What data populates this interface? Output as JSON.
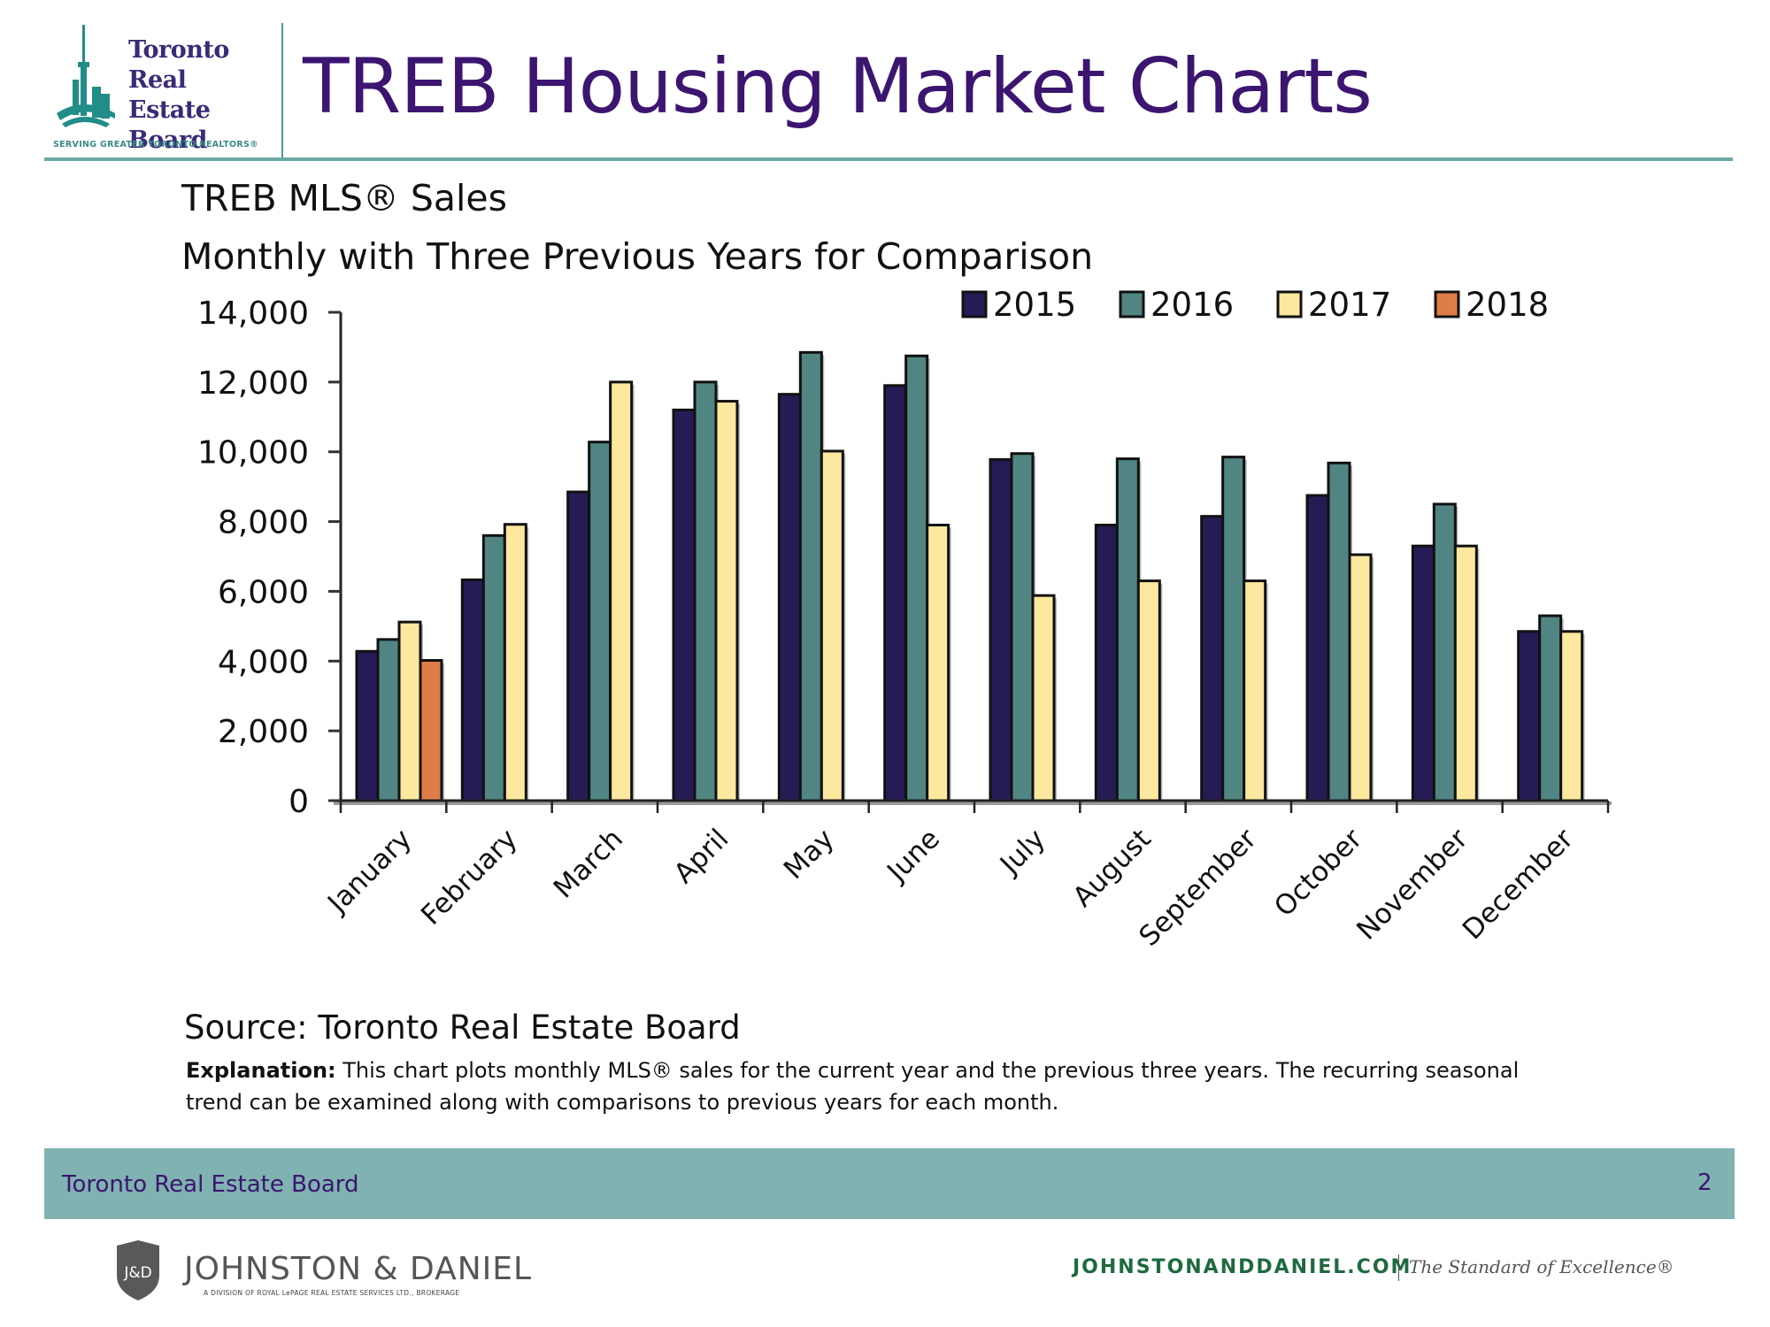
{
  "header": {
    "logo": {
      "lines": [
        "Toronto",
        "Real Estate",
        "Board"
      ],
      "tagline": "SERVING GREATER TORONTO REALTORS®",
      "icon": "cn-tower-skyline-icon"
    },
    "title": "TREB Housing Market Charts"
  },
  "chart_title": "TREB MLS® Sales",
  "chart_subtitle": "Monthly with Three Previous Years for Comparison",
  "chart_data": {
    "type": "bar",
    "title": "TREB MLS® Sales",
    "subtitle": "Monthly with Three Previous Years for Comparison",
    "xlabel": "",
    "ylabel": "",
    "categories": [
      "January",
      "February",
      "March",
      "April",
      "May",
      "June",
      "July",
      "August",
      "September",
      "October",
      "November",
      "December"
    ],
    "ylim": [
      0,
      14000
    ],
    "yticks": [
      0,
      2000,
      4000,
      6000,
      8000,
      10000,
      12000,
      14000
    ],
    "ytick_labels": [
      "0",
      "2,000",
      "4,000",
      "6,000",
      "8,000",
      "10,000",
      "12,000",
      "14,000"
    ],
    "grid": false,
    "legend_position": "top-right",
    "series": [
      {
        "name": "2015",
        "color": "#261b55",
        "values": [
          4280,
          6330,
          8850,
          11200,
          11650,
          11900,
          9780,
          7900,
          8150,
          8750,
          7300,
          4850
        ]
      },
      {
        "name": "2016",
        "color": "#508583",
        "values": [
          4620,
          7600,
          10280,
          12000,
          12850,
          12750,
          9950,
          9800,
          9850,
          9680,
          8500,
          5300
        ]
      },
      {
        "name": "2017",
        "color": "#fce89e",
        "values": [
          5120,
          7920,
          12000,
          11450,
          10020,
          7900,
          5880,
          6300,
          6300,
          7050,
          7300,
          4850
        ]
      },
      {
        "name": "2018",
        "color": "#de7d48",
        "values": [
          4020,
          null,
          null,
          null,
          null,
          null,
          null,
          null,
          null,
          null,
          null,
          null
        ]
      }
    ]
  },
  "source": "Source: Toronto Real Estate Board",
  "explanation": {
    "label": "Explanation:",
    "text": " This chart plots monthly MLS® sales for the current year and the previous three years. The recurring seasonal trend can be examined along with comparisons to previous years for each month."
  },
  "footer": {
    "left": "Toronto Real Estate Board",
    "page_number": "2"
  },
  "branding": {
    "shield_initials": "J&D",
    "name": "JOHNSTON & DANIEL",
    "subtitle": "A DIVISION OF ROYAL LePAGE REAL ESTATE SERVICES LTD., BROKERAGE",
    "url": "JOHNSTONANDDANIEL.COM",
    "tagline": "The Standard of Excellence®"
  },
  "colors": {
    "title_purple": "#3b1570",
    "teal_accent": "#6aa8a6",
    "footer_band": "#7fb2b0"
  }
}
